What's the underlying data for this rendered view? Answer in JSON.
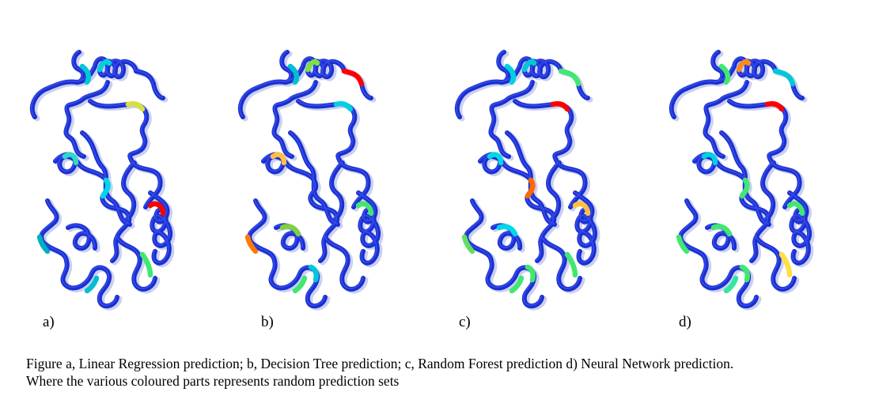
{
  "panels": [
    {
      "label": "a)",
      "highlights": [
        "#00c8d8",
        "#00d8e8",
        "#40e870",
        "#d8e040",
        "#00b0c0",
        "#00d0e0",
        "#ff0000",
        "#00c0d0",
        "#30d8c8"
      ]
    },
    {
      "label": "b)",
      "highlights": [
        "#00d0e0",
        "#ff7a00",
        "#80e040",
        "#40e870",
        "#40e870",
        "#ffc040",
        "#00c8d8",
        "#ff0000",
        "#80d040",
        "#00c0d0"
      ]
    },
    {
      "label": "c)",
      "highlights": [
        "#ffc040",
        "#40e870",
        "#00d8e8",
        "#40e870",
        "#40e870",
        "#00d8e8",
        "#00d0e0",
        "#ff6a00",
        "#40e870",
        "#ff0000",
        "#60e060",
        "#00c8d8"
      ]
    },
    {
      "label": "d)",
      "highlights": [
        "#40e870",
        "#00c8d8",
        "#40e870",
        "#40e870",
        "#40e870",
        "#ffe040",
        "#ff0000",
        "#40e870",
        "#ff8a20",
        "#40e870",
        "#30e8a0",
        "#00d0e0"
      ]
    }
  ],
  "caption": {
    "line1": "Figure a, Linear Regression prediction; b, Decision Tree prediction; c, Random Forest prediction d) Neural Network prediction.",
    "line2": "Where the various coloured parts represents random prediction sets"
  }
}
